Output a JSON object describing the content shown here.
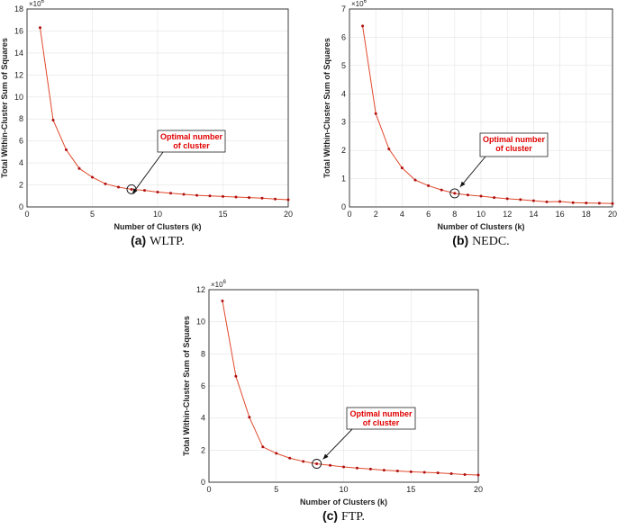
{
  "chart_data": [
    {
      "type": "line",
      "panel": "a",
      "caption_label": "(a)",
      "caption_text": "WLTP.",
      "xlabel": "Number of Clusters (k)",
      "ylabel": "Total Within-Cluster Sum of Squares",
      "multiplier": "×10",
      "multiplier_exp": "6",
      "xlim": [
        0,
        20
      ],
      "ylim": [
        0,
        18
      ],
      "xticks": [
        0,
        5,
        10,
        15,
        20
      ],
      "yticks": [
        0,
        2,
        4,
        6,
        8,
        10,
        12,
        14,
        16,
        18
      ],
      "x": [
        1,
        2,
        3,
        4,
        5,
        6,
        7,
        8,
        9,
        10,
        11,
        12,
        13,
        14,
        15,
        16,
        17,
        18,
        19,
        20
      ],
      "y": [
        16.3,
        7.9,
        5.2,
        3.5,
        2.7,
        2.1,
        1.8,
        1.6,
        1.5,
        1.35,
        1.25,
        1.15,
        1.05,
        1.0,
        0.95,
        0.9,
        0.85,
        0.8,
        0.72,
        0.65
      ],
      "optimal_k": 8,
      "annotation": [
        "Optimal number",
        "of cluster"
      ],
      "line_color": "#e0482b",
      "marker_color": "#b01010",
      "annotation_color": "#e00000"
    },
    {
      "type": "line",
      "panel": "b",
      "caption_label": "(b)",
      "caption_text": "NEDC.",
      "xlabel": "Number of Clusters (k)",
      "ylabel": "Total Within-Cluster Sum of Squares",
      "multiplier": "×10",
      "multiplier_exp": "6",
      "xlim": [
        0,
        20
      ],
      "ylim": [
        0,
        7
      ],
      "xticks": [
        0,
        2,
        4,
        6,
        8,
        10,
        12,
        14,
        16,
        18,
        20
      ],
      "yticks": [
        0,
        1,
        2,
        3,
        4,
        5,
        6,
        7
      ],
      "x": [
        1,
        2,
        3,
        4,
        5,
        6,
        7,
        8,
        9,
        10,
        11,
        12,
        13,
        14,
        15,
        16,
        17,
        18,
        19,
        20
      ],
      "y": [
        6.4,
        3.3,
        2.05,
        1.38,
        0.95,
        0.75,
        0.6,
        0.48,
        0.42,
        0.38,
        0.33,
        0.29,
        0.26,
        0.22,
        0.18,
        0.19,
        0.15,
        0.14,
        0.13,
        0.12
      ],
      "optimal_k": 8,
      "annotation": [
        "Optimal number",
        "of cluster"
      ],
      "line_color": "#e0482b",
      "marker_color": "#b01010",
      "annotation_color": "#e00000"
    },
    {
      "type": "line",
      "panel": "c",
      "caption_label": "(c)",
      "caption_text": "FTP.",
      "xlabel": "Number of Clusters (k)",
      "ylabel": "Total Within-Cluster Sum of Squares",
      "multiplier": "×10",
      "multiplier_exp": "6",
      "xlim": [
        0,
        20
      ],
      "ylim": [
        0,
        12
      ],
      "xticks": [
        0,
        5,
        10,
        15,
        20
      ],
      "yticks": [
        0,
        2,
        4,
        6,
        8,
        10,
        12
      ],
      "x": [
        1,
        2,
        3,
        4,
        5,
        6,
        7,
        8,
        9,
        10,
        11,
        12,
        13,
        14,
        15,
        16,
        17,
        18,
        19,
        20
      ],
      "y": [
        11.3,
        6.6,
        4.05,
        2.2,
        1.8,
        1.5,
        1.3,
        1.15,
        1.05,
        0.95,
        0.88,
        0.82,
        0.75,
        0.7,
        0.65,
        0.62,
        0.58,
        0.53,
        0.48,
        0.45
      ],
      "optimal_k": 8,
      "annotation": [
        "Optimal number",
        "of cluster"
      ],
      "line_color": "#e0482b",
      "marker_color": "#b01010",
      "annotation_color": "#e00000"
    }
  ]
}
